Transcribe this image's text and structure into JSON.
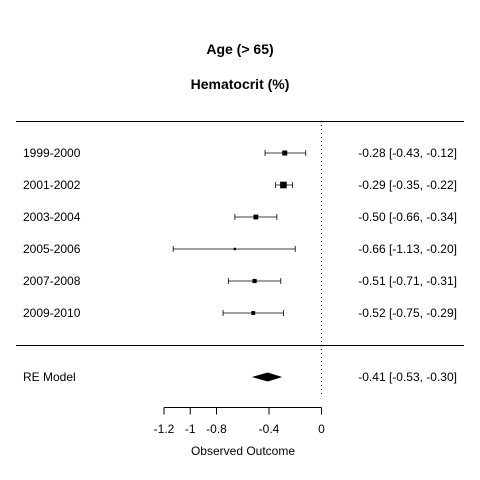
{
  "chart_data": {
    "type": "forest",
    "title": "Age (> 65)",
    "subtitle": "Hematocrit (%)",
    "xlabel": "Observed Outcome",
    "xlim": [
      -1.2,
      0
    ],
    "x_ticks": [
      -1.2,
      -1,
      -0.8,
      -0.4,
      0
    ],
    "x_tick_labels": [
      "-1.2",
      "-1",
      "-0.8",
      "-0.4",
      "0"
    ],
    "reference_line": 0,
    "studies": [
      {
        "label": "1999-2000",
        "estimate": -0.28,
        "lower": -0.43,
        "upper": -0.12,
        "ci_text": "-0.28 [-0.43, -0.12]",
        "weight": 2.0
      },
      {
        "label": "2001-2002",
        "estimate": -0.29,
        "lower": -0.35,
        "upper": -0.22,
        "ci_text": "-0.29 [-0.35, -0.22]",
        "weight": 2.8
      },
      {
        "label": "2003-2004",
        "estimate": -0.5,
        "lower": -0.66,
        "upper": -0.34,
        "ci_text": "-0.50 [-0.66, -0.34]",
        "weight": 1.9
      },
      {
        "label": "2005-2006",
        "estimate": -0.66,
        "lower": -1.13,
        "upper": -0.2,
        "ci_text": "-0.66 [-1.13, -0.20]",
        "weight": 0.7
      },
      {
        "label": "2007-2008",
        "estimate": -0.51,
        "lower": -0.71,
        "upper": -0.31,
        "ci_text": "-0.51 [-0.71, -0.31]",
        "weight": 1.6
      },
      {
        "label": "2009-2010",
        "estimate": -0.52,
        "lower": -0.75,
        "upper": -0.29,
        "ci_text": "-0.52 [-0.75, -0.29]",
        "weight": 1.4
      }
    ],
    "summary": {
      "label": "RE Model",
      "estimate": -0.41,
      "lower": -0.53,
      "upper": -0.3,
      "ci_text": "-0.41 [-0.53, -0.30]"
    }
  }
}
